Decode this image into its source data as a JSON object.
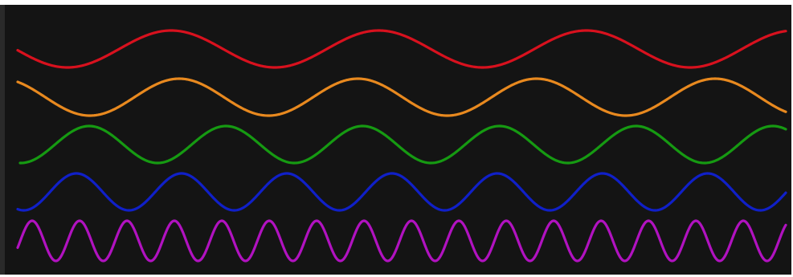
{
  "diagram": {
    "waves": [
      {
        "color": "#d8111e",
        "cycles": 3.7
      },
      {
        "color": "#e8891f",
        "cycles": 4.3
      },
      {
        "color": "#169a12",
        "cycles": 5.6
      },
      {
        "color": "#1020c8",
        "cycles": 7.3
      },
      {
        "color": "#b112c0",
        "cycles": 16.2
      }
    ]
  }
}
